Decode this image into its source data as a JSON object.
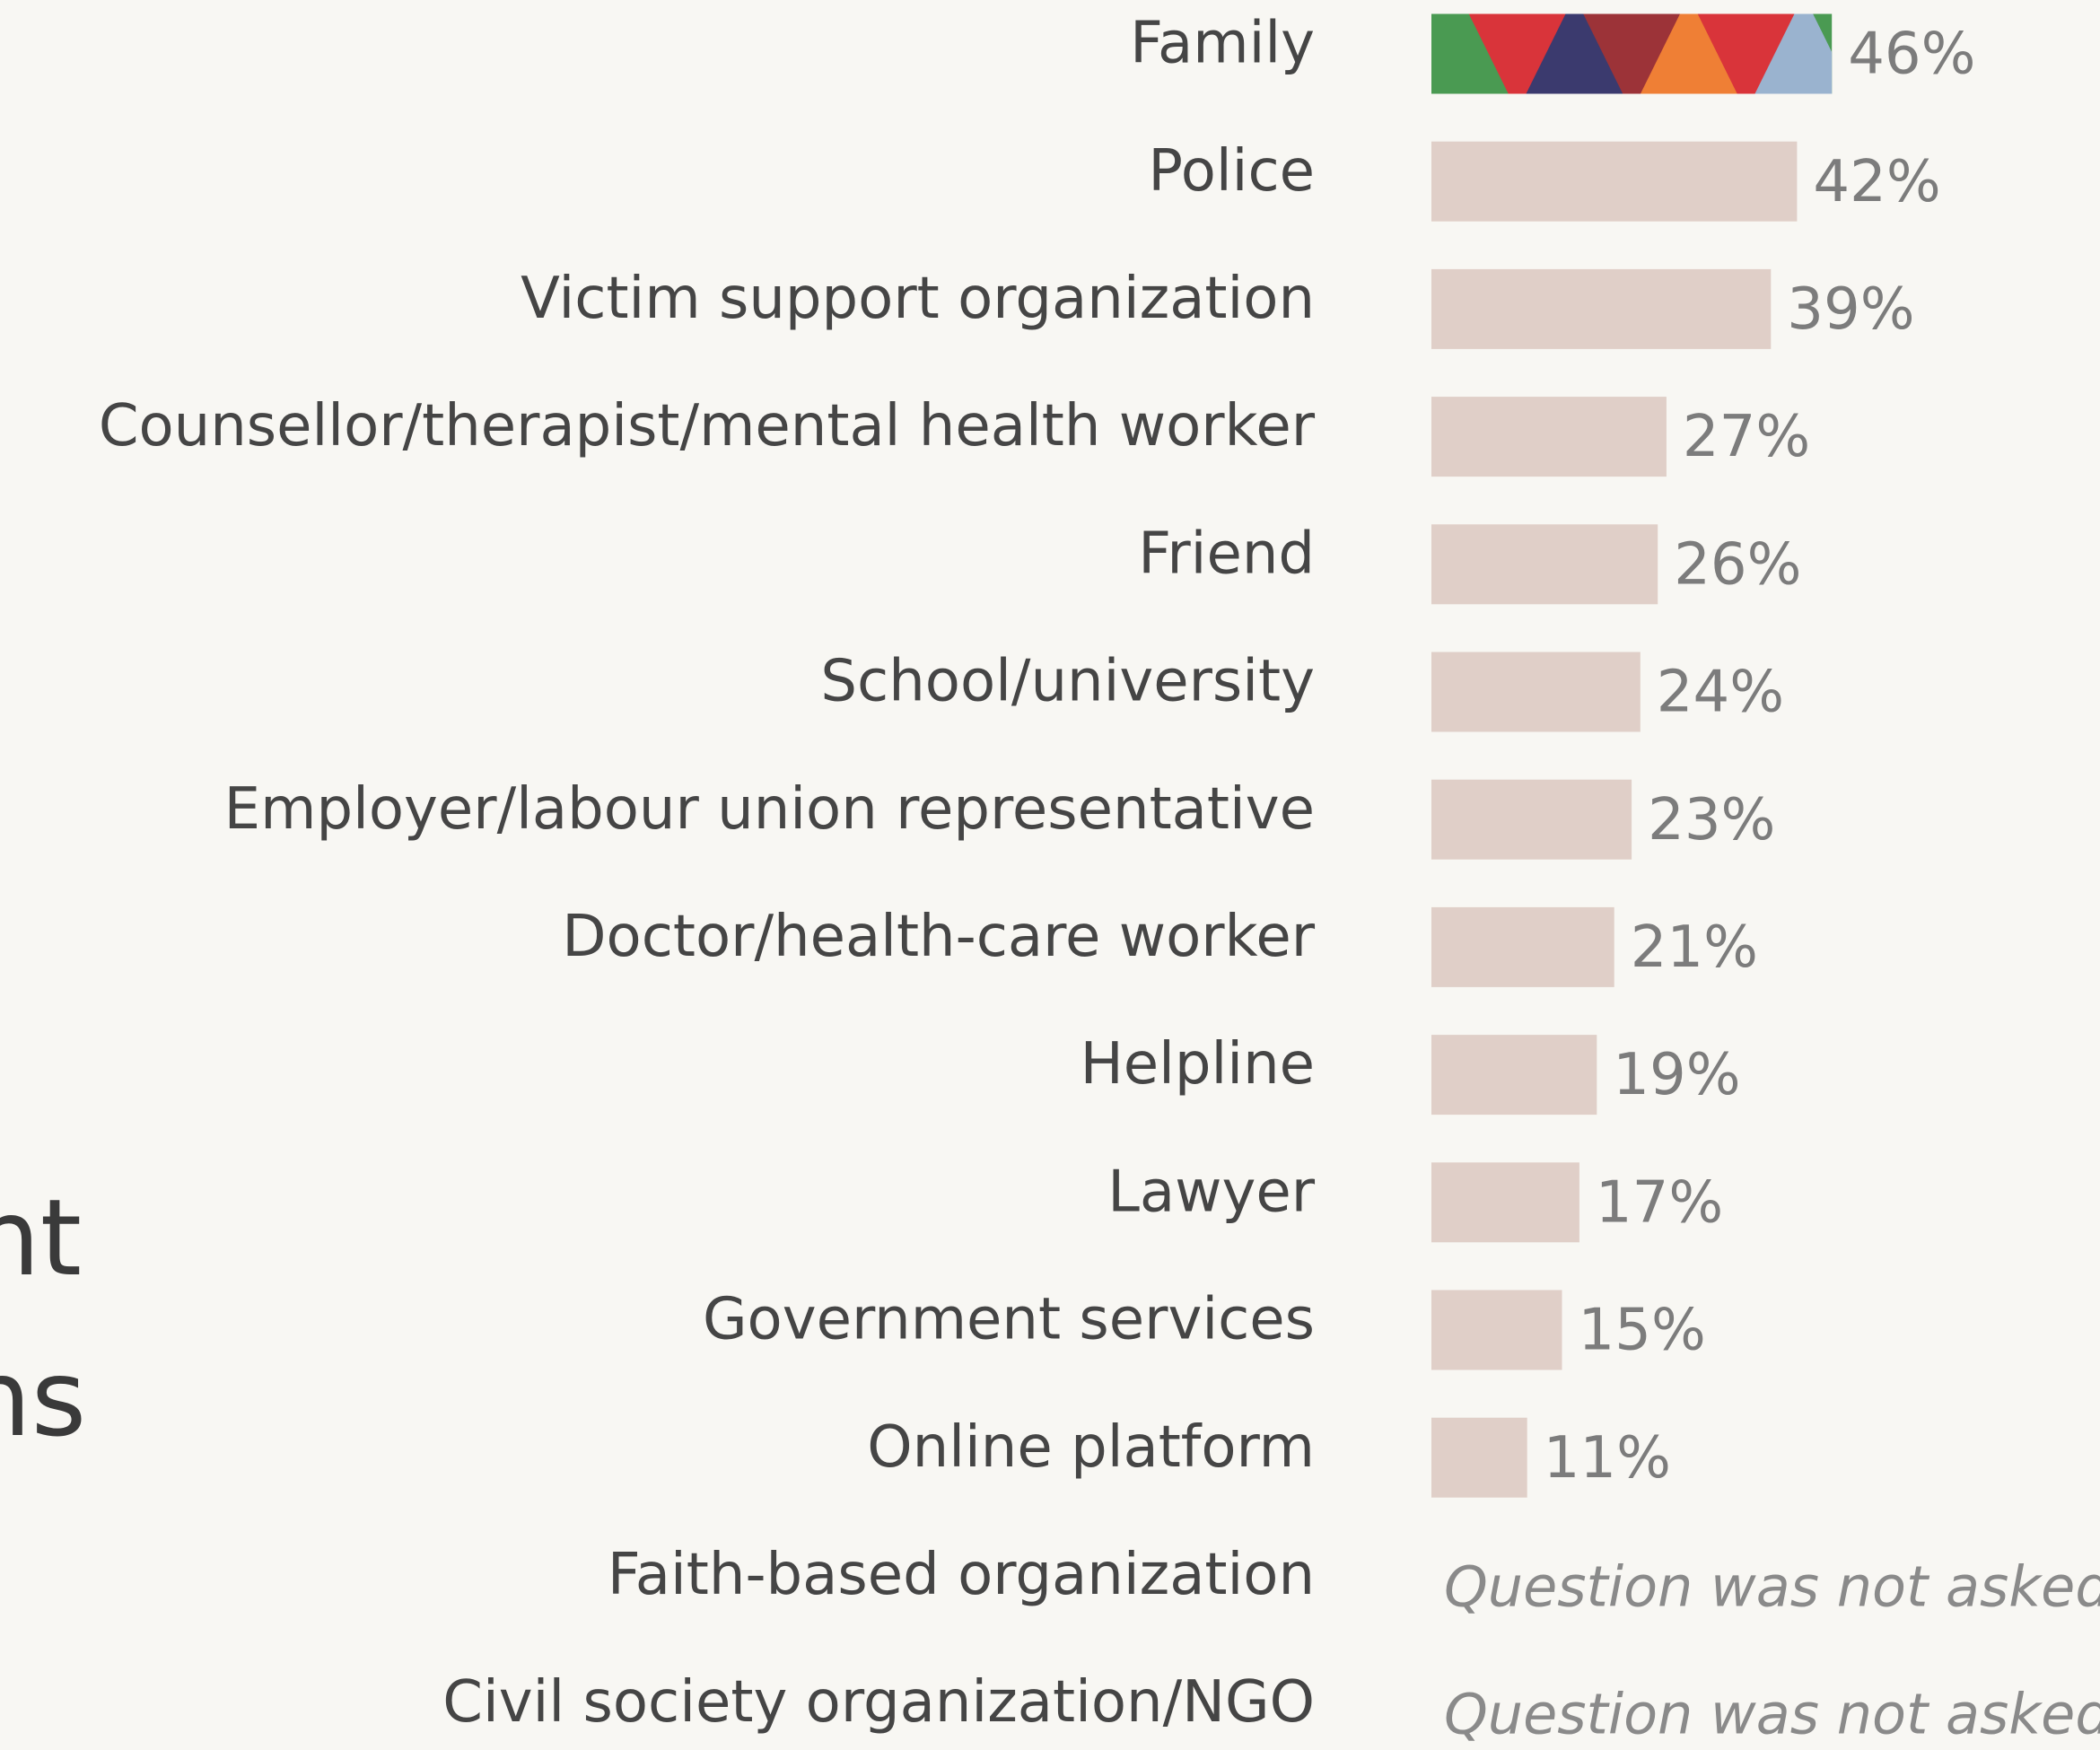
{
  "chart_data": {
    "type": "bar",
    "orientation": "horizontal",
    "fragments": [
      "nt",
      "ns"
    ],
    "categories": [
      "Family",
      "Police",
      "Victim support organization",
      "Counsellor/therapist/mental health worker",
      "Friend",
      "School/university",
      "Employer/labour union representative",
      "Doctor/health-care worker",
      "Helpline",
      "Lawyer",
      "Government services",
      "Online platform",
      "Faith-based organization",
      "Civil society organization/NGO"
    ],
    "values": [
      46,
      42,
      39,
      27,
      26,
      24,
      23,
      21,
      19,
      17,
      15,
      11,
      null,
      null
    ],
    "value_labels": [
      "46%",
      "42%",
      "39%",
      "27%",
      "26%",
      "24%",
      "23%",
      "21%",
      "19%",
      "17%",
      "15%",
      "11%",
      "Question was not asked.",
      "Question was not asked."
    ],
    "color": "#e0cfc8",
    "highlight_colors": [
      "#4a9a52",
      "#d9343a",
      "#3b3a6e",
      "#9c3338",
      "#ef7f35",
      "#d9343a",
      "#9ab3cf"
    ],
    "xlim": [
      0,
      100
    ]
  }
}
